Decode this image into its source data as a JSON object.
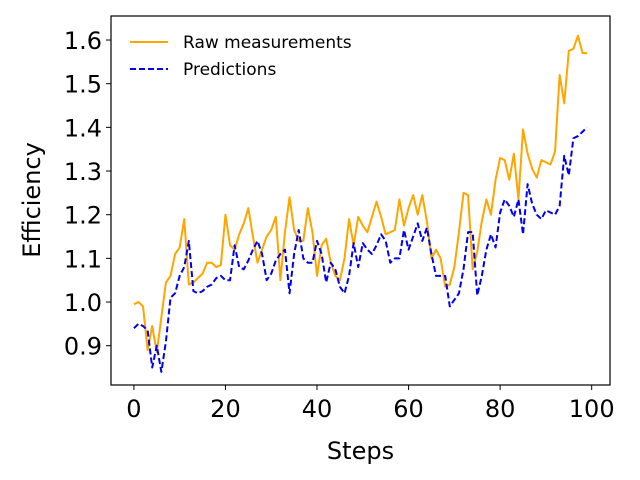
{
  "chart_data": {
    "type": "line",
    "title": "",
    "xlabel": "Steps",
    "ylabel": "Efficiency",
    "xlim": [
      -5,
      104
    ],
    "ylim": [
      0.81,
      1.655
    ],
    "xticks": [
      0,
      20,
      40,
      60,
      80,
      100
    ],
    "yticks": [
      0.9,
      1.0,
      1.1,
      1.2,
      1.3,
      1.4,
      1.5,
      1.6
    ],
    "xtick_labels": [
      "0",
      "20",
      "40",
      "60",
      "80",
      "100"
    ],
    "ytick_labels": [
      "0.9",
      "1.0",
      "1.1",
      "1.2",
      "1.3",
      "1.4",
      "1.5",
      "1.6"
    ],
    "grid": false,
    "legend_position": "upper-left",
    "x": [
      0,
      1,
      2,
      3,
      4,
      5,
      6,
      7,
      8,
      9,
      10,
      11,
      12,
      13,
      14,
      15,
      16,
      17,
      18,
      19,
      20,
      21,
      22,
      23,
      24,
      25,
      26,
      27,
      28,
      29,
      30,
      31,
      32,
      33,
      34,
      35,
      36,
      37,
      38,
      39,
      40,
      41,
      42,
      43,
      44,
      45,
      46,
      47,
      48,
      49,
      50,
      51,
      52,
      53,
      54,
      55,
      56,
      57,
      58,
      59,
      60,
      61,
      62,
      63,
      64,
      65,
      66,
      67,
      68,
      69,
      70,
      71,
      72,
      73,
      74,
      75,
      76,
      77,
      78,
      79,
      80,
      81,
      82,
      83,
      84,
      85,
      86,
      87,
      88,
      89,
      90,
      91,
      92,
      93,
      94,
      95,
      96,
      97,
      98,
      99
    ],
    "series": [
      {
        "name": "Raw measurements",
        "color": "#ffa500",
        "style": "solid",
        "values": [
          0.995,
          1.0,
          0.99,
          0.89,
          0.945,
          0.885,
          0.965,
          1.045,
          1.06,
          1.11,
          1.125,
          1.19,
          1.04,
          1.045,
          1.055,
          1.065,
          1.09,
          1.09,
          1.08,
          1.085,
          1.2,
          1.13,
          1.12,
          1.155,
          1.18,
          1.215,
          1.15,
          1.09,
          1.12,
          1.15,
          1.165,
          1.195,
          1.05,
          1.16,
          1.24,
          1.165,
          1.14,
          1.14,
          1.215,
          1.16,
          1.06,
          1.13,
          1.145,
          1.09,
          1.06,
          1.05,
          1.1,
          1.19,
          1.13,
          1.195,
          1.175,
          1.16,
          1.195,
          1.23,
          1.195,
          1.155,
          1.16,
          1.165,
          1.235,
          1.175,
          1.215,
          1.245,
          1.2,
          1.245,
          1.185,
          1.1,
          1.12,
          1.1,
          1.035,
          1.04,
          1.08,
          1.16,
          1.25,
          1.245,
          1.075,
          1.115,
          1.185,
          1.235,
          1.2,
          1.28,
          1.33,
          1.325,
          1.28,
          1.34,
          1.235,
          1.395,
          1.34,
          1.305,
          1.285,
          1.325,
          1.32,
          1.315,
          1.345,
          1.52,
          1.455,
          1.575,
          1.58,
          1.61,
          1.57,
          1.57
        ]
      },
      {
        "name": "Predictions",
        "color": "#0000ee",
        "style": "dashed",
        "values": [
          0.94,
          0.95,
          0.945,
          0.935,
          0.85,
          0.9,
          0.84,
          0.91,
          1.01,
          1.02,
          1.06,
          1.08,
          1.14,
          1.025,
          1.02,
          1.025,
          1.035,
          1.04,
          1.055,
          1.06,
          1.05,
          1.05,
          1.13,
          1.08,
          1.075,
          1.095,
          1.12,
          1.14,
          1.11,
          1.05,
          1.065,
          1.095,
          1.11,
          1.12,
          1.02,
          1.11,
          1.165,
          1.1,
          1.09,
          1.09,
          1.14,
          1.11,
          1.045,
          1.09,
          1.075,
          1.035,
          1.02,
          1.06,
          1.135,
          1.08,
          1.135,
          1.12,
          1.11,
          1.13,
          1.155,
          1.14,
          1.09,
          1.1,
          1.1,
          1.165,
          1.12,
          1.15,
          1.18,
          1.14,
          1.17,
          1.11,
          1.06,
          1.06,
          1.06,
          0.99,
          1.005,
          1.02,
          1.075,
          1.16,
          1.16,
          1.015,
          1.06,
          1.12,
          1.155,
          1.125,
          1.205,
          1.235,
          1.22,
          1.195,
          1.235,
          1.155,
          1.27,
          1.225,
          1.2,
          1.19,
          1.21,
          1.205,
          1.2,
          1.22,
          1.335,
          1.29,
          1.375,
          1.38,
          1.39,
          1.4
        ]
      }
    ]
  }
}
